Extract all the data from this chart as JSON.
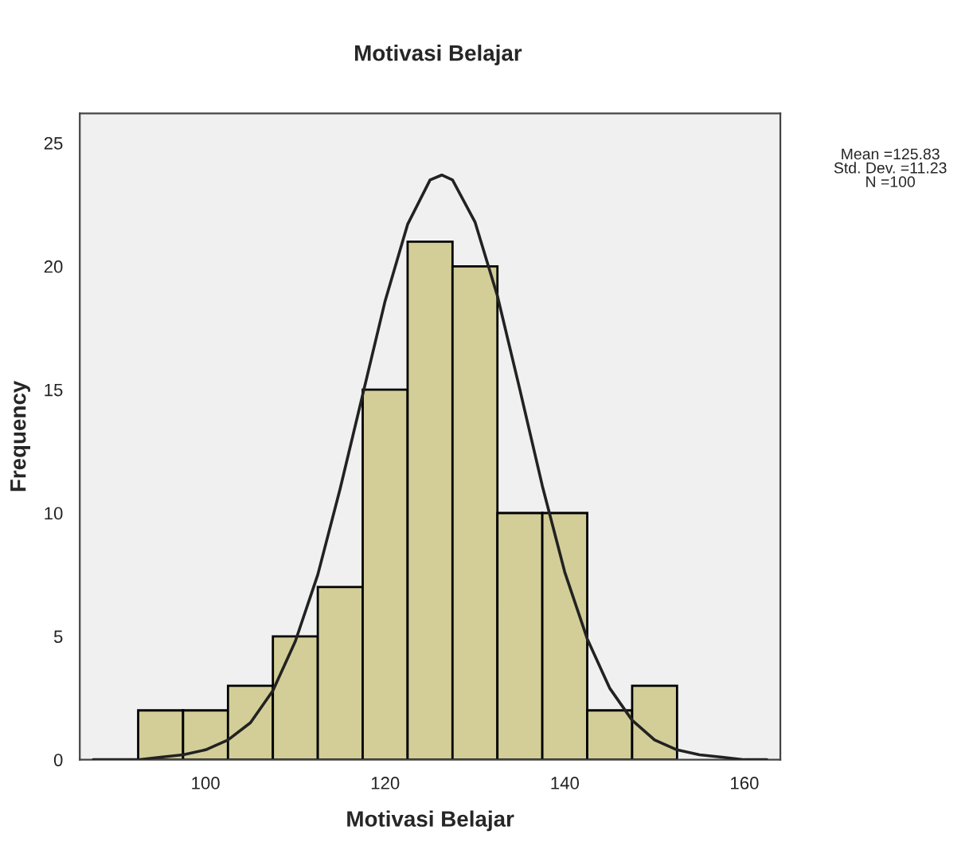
{
  "chart_data": {
    "type": "histogram",
    "title": "Motivasi Belajar",
    "xlabel": "Motivasi Belajar",
    "ylabel": "Frequency",
    "annotations": [
      "Mean =125.83\nStd. Dev. =11.23\nN =100"
    ],
    "series": [
      {
        "color": "#d3ce98",
        "bins": [
          92.5,
          97.5,
          102.5,
          107.5,
          112.5,
          117.5,
          122.5,
          127.5,
          132.5,
          137.5,
          142.5,
          147.5,
          152.5
        ],
        "values": [
          2,
          2,
          3,
          5,
          7,
          15,
          21,
          20,
          10,
          10,
          2,
          3
        ]
      },
      {
        "type": "line",
        "color": "#222222",
        "x": [
          87.5,
          90,
          92.5,
          95,
          97.5,
          100,
          102.5,
          105,
          107.5,
          110,
          112.5,
          115,
          117.5,
          120,
          122.5,
          125,
          126.3,
          127.5,
          130,
          132.5,
          135,
          137.5,
          140,
          142.5,
          145,
          147.5,
          150,
          152.5,
          155,
          157.5,
          160,
          162.5
        ],
        "values": [
          0.0,
          0.0,
          0.0,
          0.1,
          0.2,
          0.4,
          0.8,
          1.5,
          2.8,
          4.8,
          7.5,
          11.0,
          14.8,
          18.6,
          21.7,
          23.5,
          23.7,
          23.5,
          21.8,
          18.8,
          15.0,
          11.1,
          7.6,
          4.9,
          2.9,
          1.6,
          0.8,
          0.4,
          0.2,
          0.1,
          0.0,
          0.0
        ]
      }
    ],
    "xlim": [
      86,
      164
    ],
    "xticks": [
      100,
      120,
      140,
      160
    ],
    "ylim": [
      0,
      26.2
    ],
    "yticks": [
      0,
      5,
      10,
      15,
      20,
      25
    ],
    "grid": false,
    "legend": false
  }
}
